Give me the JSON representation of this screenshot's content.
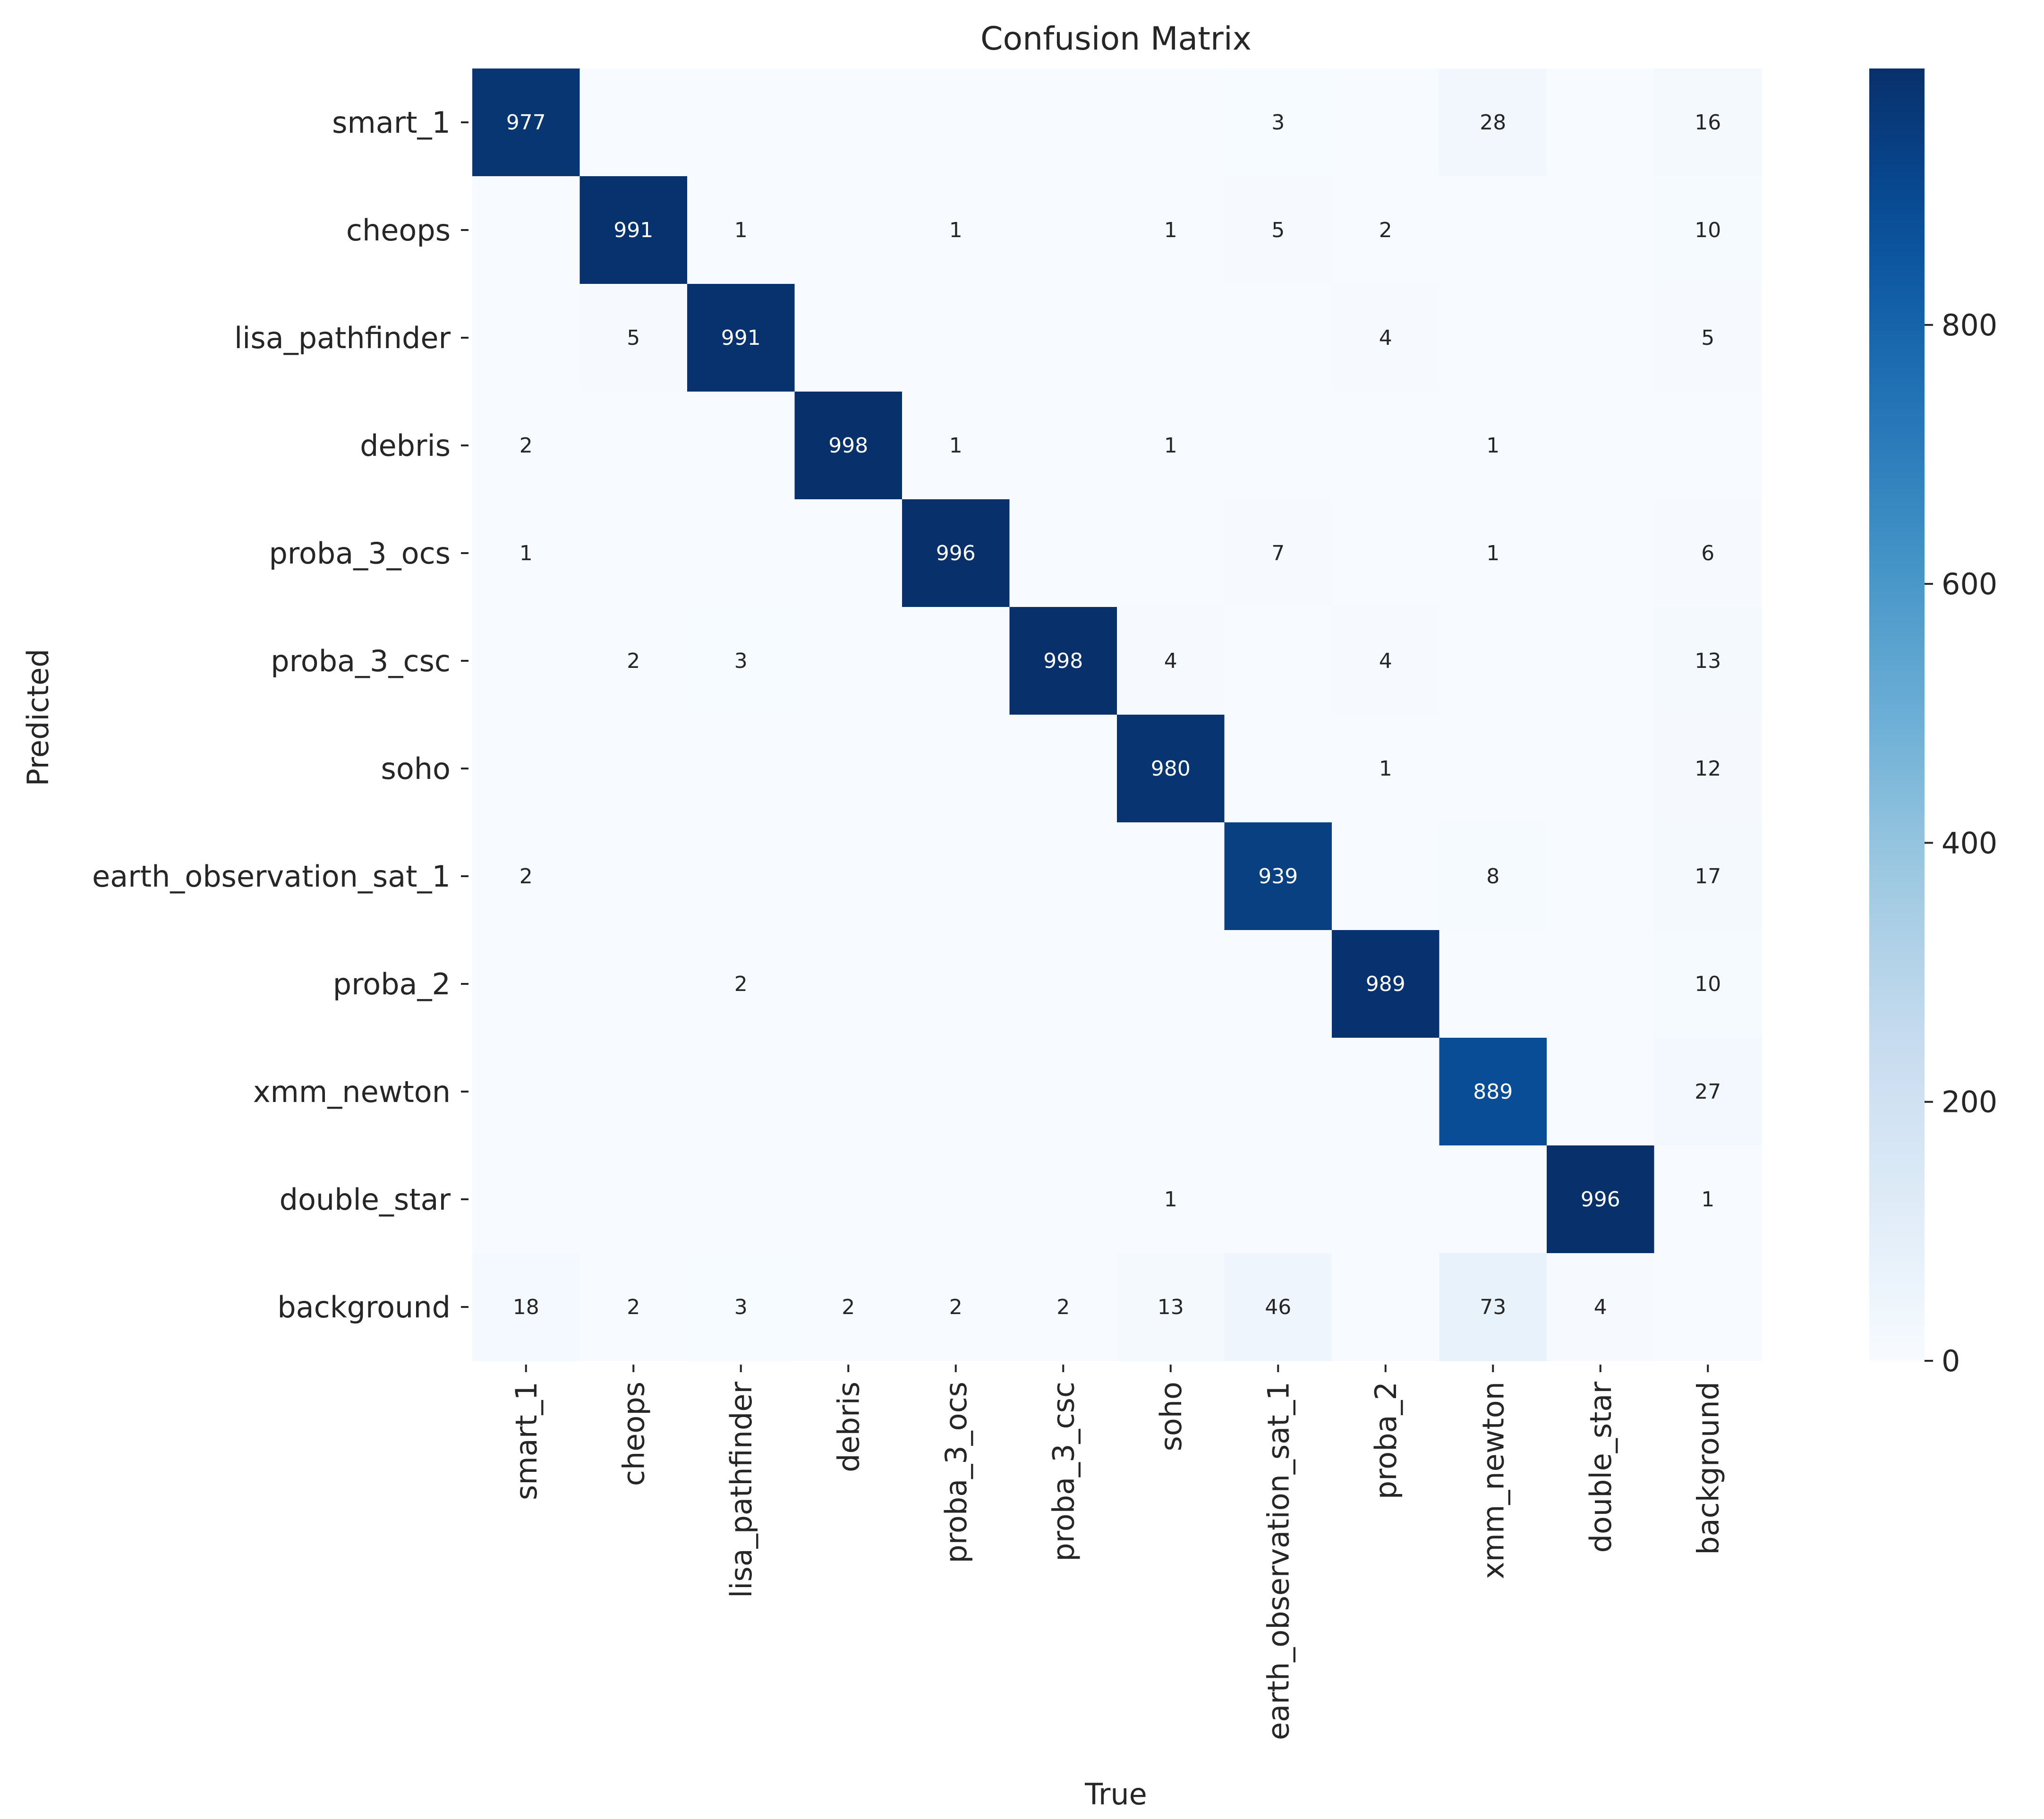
{
  "chart_data": {
    "type": "heatmap",
    "title": "Confusion Matrix",
    "xlabel": "True",
    "ylabel": "Predicted",
    "x_categories": [
      "smart_1",
      "cheops",
      "lisa_pathfinder",
      "debris",
      "proba_3_ocs",
      "proba_3_csc",
      "soho",
      "earth_observation_sat_1",
      "proba_2",
      "xmm_newton",
      "double_star",
      "background"
    ],
    "y_categories": [
      "smart_1",
      "cheops",
      "lisa_pathfinder",
      "debris",
      "proba_3_ocs",
      "proba_3_csc",
      "soho",
      "earth_observation_sat_1",
      "proba_2",
      "xmm_newton",
      "double_star",
      "background"
    ],
    "matrix": [
      [
        977,
        0,
        0,
        0,
        0,
        0,
        0,
        3,
        0,
        28,
        0,
        16
      ],
      [
        0,
        991,
        1,
        0,
        1,
        0,
        1,
        5,
        2,
        0,
        0,
        10
      ],
      [
        0,
        5,
        991,
        0,
        0,
        0,
        0,
        0,
        4,
        0,
        0,
        5
      ],
      [
        2,
        0,
        0,
        998,
        1,
        0,
        1,
        0,
        0,
        1,
        0,
        0
      ],
      [
        1,
        0,
        0,
        0,
        996,
        0,
        0,
        7,
        0,
        1,
        0,
        6
      ],
      [
        0,
        2,
        3,
        0,
        0,
        998,
        4,
        0,
        4,
        0,
        0,
        13
      ],
      [
        0,
        0,
        0,
        0,
        0,
        0,
        980,
        0,
        1,
        0,
        0,
        12
      ],
      [
        2,
        0,
        0,
        0,
        0,
        0,
        0,
        939,
        0,
        8,
        0,
        17
      ],
      [
        0,
        0,
        2,
        0,
        0,
        0,
        0,
        0,
        989,
        0,
        0,
        10
      ],
      [
        0,
        0,
        0,
        0,
        0,
        0,
        0,
        0,
        0,
        889,
        0,
        27
      ],
      [
        0,
        0,
        0,
        0,
        0,
        0,
        1,
        0,
        0,
        0,
        996,
        1
      ],
      [
        18,
        2,
        3,
        2,
        2,
        2,
        13,
        46,
        0,
        73,
        4,
        0
      ]
    ],
    "blank_zero_cells": true,
    "colormap": "Blues",
    "value_range": [
      0,
      998
    ],
    "colorbar": {
      "ticks": [
        0,
        200,
        400,
        600,
        800
      ]
    },
    "colors": {
      "low": "#f7fbff",
      "high": "#08306b",
      "text_dark": "#262626",
      "text_light": "#ffffff"
    }
  }
}
